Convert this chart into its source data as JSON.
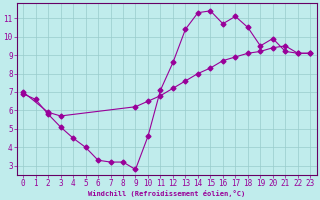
{
  "xlabel": "Windchill (Refroidissement éolien,°C)",
  "bg_color": "#c0ecec",
  "line_color": "#990099",
  "grid_color": "#99cccc",
  "axis_color": "#660066",
  "xlim": [
    -0.5,
    23.5
  ],
  "ylim": [
    2.5,
    11.8
  ],
  "xticks": [
    0,
    1,
    2,
    3,
    4,
    5,
    6,
    7,
    8,
    9,
    10,
    11,
    12,
    13,
    14,
    15,
    16,
    17,
    18,
    19,
    20,
    21,
    22,
    23
  ],
  "yticks": [
    3,
    4,
    5,
    6,
    7,
    8,
    9,
    10,
    11
  ],
  "curve1_x": [
    0,
    1,
    2,
    3,
    4,
    5,
    6,
    7,
    8,
    9,
    10,
    11,
    12,
    13,
    14,
    15,
    16,
    17,
    18,
    19,
    20,
    21,
    22,
    23
  ],
  "curve1_y": [
    6.9,
    6.6,
    5.8,
    5.1,
    4.5,
    4.0,
    3.3,
    3.2,
    3.2,
    2.8,
    4.6,
    7.1,
    8.6,
    10.4,
    11.3,
    11.4,
    10.7,
    11.1,
    10.5,
    9.5,
    9.9,
    9.2,
    9.1,
    9.1
  ],
  "curve2_x": [
    0,
    2,
    3,
    9,
    10,
    11,
    12,
    13,
    14,
    15,
    16,
    17,
    18,
    19,
    20,
    21,
    22,
    23
  ],
  "curve2_y": [
    7.0,
    5.9,
    5.7,
    6.2,
    6.5,
    6.8,
    7.2,
    7.6,
    8.0,
    8.3,
    8.7,
    8.9,
    9.1,
    9.2,
    9.4,
    9.5,
    9.1,
    9.1
  ],
  "xlabel_fontsize": 5.0,
  "tick_fontsize": 5.5
}
